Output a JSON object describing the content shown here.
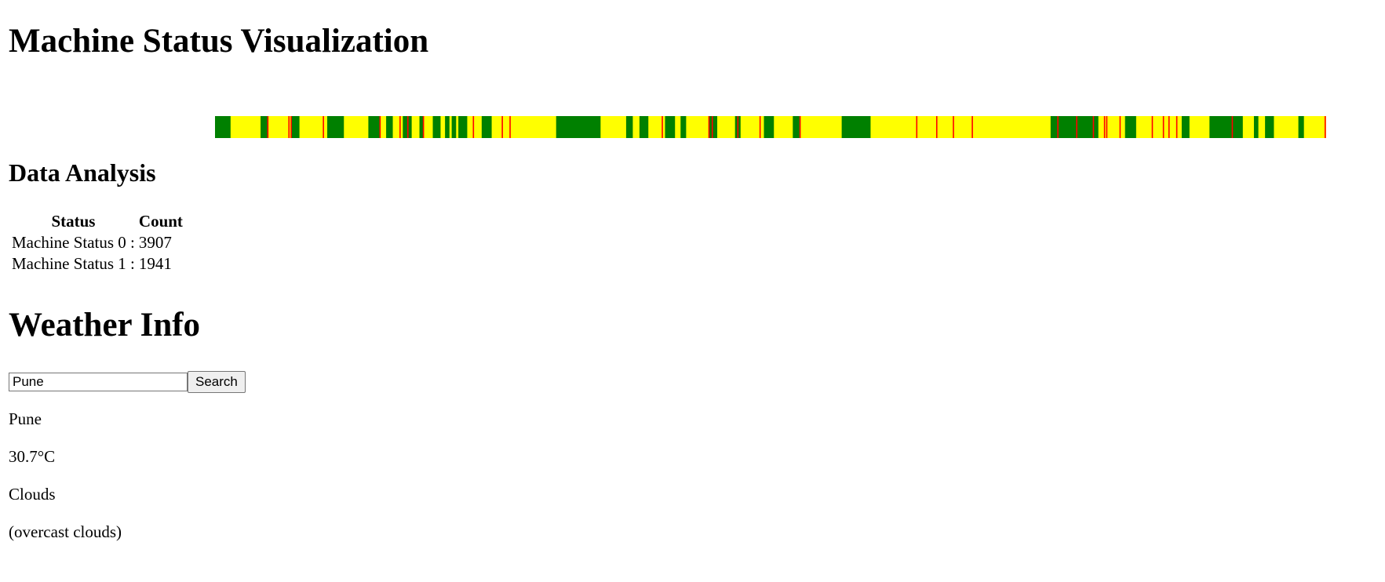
{
  "page": {
    "title": "Machine Status Visualization"
  },
  "status_colors": {
    "base": "#ffff00",
    "status_1": "#008000",
    "event": "#ff0000"
  },
  "chart_data": {
    "type": "timeline",
    "x_range": [
      0,
      1000
    ],
    "segments": [
      {
        "status": 1,
        "start": 0,
        "end": 14
      },
      {
        "status": 1,
        "start": 41,
        "end": 47
      },
      {
        "status": 1,
        "start": 69,
        "end": 76
      },
      {
        "status": 1,
        "start": 101,
        "end": 116
      },
      {
        "status": 1,
        "start": 138,
        "end": 148
      },
      {
        "status": 1,
        "start": 154,
        "end": 160
      },
      {
        "status": 1,
        "start": 169,
        "end": 177
      },
      {
        "status": 1,
        "start": 184,
        "end": 188
      },
      {
        "status": 1,
        "start": 196,
        "end": 203
      },
      {
        "status": 1,
        "start": 207,
        "end": 211
      },
      {
        "status": 1,
        "start": 213,
        "end": 217
      },
      {
        "status": 1,
        "start": 219,
        "end": 227
      },
      {
        "status": 1,
        "start": 240,
        "end": 249
      },
      {
        "status": 1,
        "start": 307,
        "end": 347
      },
      {
        "status": 1,
        "start": 370,
        "end": 376
      },
      {
        "status": 1,
        "start": 382,
        "end": 390
      },
      {
        "status": 1,
        "start": 405,
        "end": 414
      },
      {
        "status": 1,
        "start": 419,
        "end": 424
      },
      {
        "status": 1,
        "start": 445,
        "end": 452
      },
      {
        "status": 1,
        "start": 468,
        "end": 473
      },
      {
        "status": 1,
        "start": 494,
        "end": 503
      },
      {
        "status": 1,
        "start": 520,
        "end": 526
      },
      {
        "status": 1,
        "start": 564,
        "end": 590
      },
      {
        "status": 1,
        "start": 752,
        "end": 795
      },
      {
        "status": 1,
        "start": 819,
        "end": 829
      },
      {
        "status": 1,
        "start": 870,
        "end": 877
      },
      {
        "status": 1,
        "start": 895,
        "end": 925
      },
      {
        "status": 1,
        "start": 935,
        "end": 939
      },
      {
        "status": 1,
        "start": 945,
        "end": 953
      },
      {
        "status": 1,
        "start": 975,
        "end": 980
      }
    ],
    "events": [
      47,
      66,
      68,
      97,
      148,
      166,
      173,
      187,
      232,
      258,
      265,
      402,
      444,
      447,
      470,
      490,
      526,
      631,
      649,
      664,
      681,
      758,
      775,
      790,
      800,
      802,
      814,
      843,
      853,
      858,
      865,
      915,
      999
    ]
  },
  "analysis": {
    "title": "Data Analysis",
    "headers": [
      "Status",
      "Count"
    ],
    "rows": [
      {
        "label": "Machine Status 0 :",
        "count": "3907"
      },
      {
        "label": "Machine Status 1 :",
        "count": "1941"
      }
    ]
  },
  "weather": {
    "title": "Weather Info",
    "search": {
      "value": "Pune",
      "button_label": "Search"
    },
    "city": "Pune",
    "temperature": "30.7°C",
    "condition": "Clouds",
    "description": "(overcast clouds)"
  }
}
